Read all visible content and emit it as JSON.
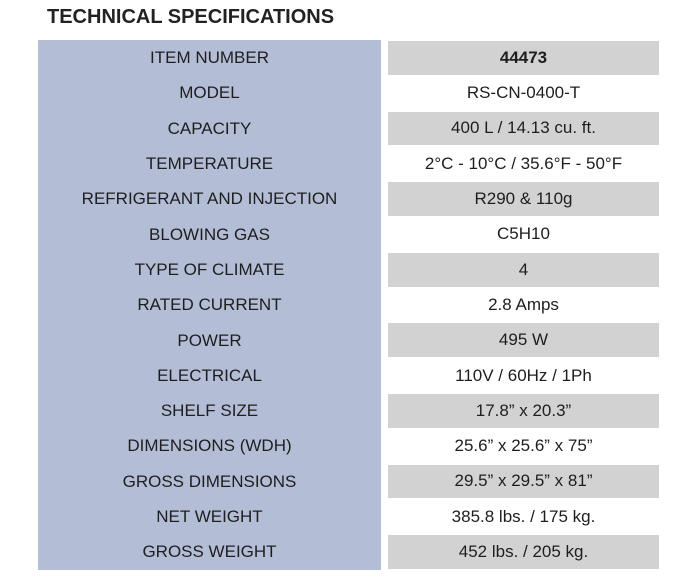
{
  "header": {
    "title": "TECHNICAL SPECIFICATIONS"
  },
  "table": {
    "rows": [
      [
        "ITEM NUMBER",
        "44473"
      ],
      [
        "MODEL",
        "RS-CN-0400-T"
      ],
      [
        "CAPACITY",
        "400 L / 14.13 cu. ft."
      ],
      [
        "TEMPERATURE",
        "2°C - 10°C / 35.6°F - 50°F"
      ],
      [
        "REFRIGERANT AND INJECTION",
        "R290 & 110g"
      ],
      [
        "BLOWING GAS",
        "C5H10"
      ],
      [
        "TYPE OF CLIMATE",
        "4"
      ],
      [
        "RATED CURRENT",
        "2.8 Amps"
      ],
      [
        "POWER",
        "495 W"
      ],
      [
        "ELECTRICAL",
        "110V / 60Hz / 1Ph"
      ],
      [
        "SHELF SIZE",
        "17.8” x 20.3”"
      ],
      [
        "DIMENSIONS (WDH)",
        "25.6” x 25.6” x 75”"
      ],
      [
        "GROSS DIMENSIONS",
        "29.5” x 29.5” x 81”"
      ],
      [
        "NET WEIGHT",
        "385.8 lbs. / 175 kg."
      ],
      [
        "GROSS WEIGHT",
        "452 lbs. / 205 kg."
      ]
    ]
  }
}
